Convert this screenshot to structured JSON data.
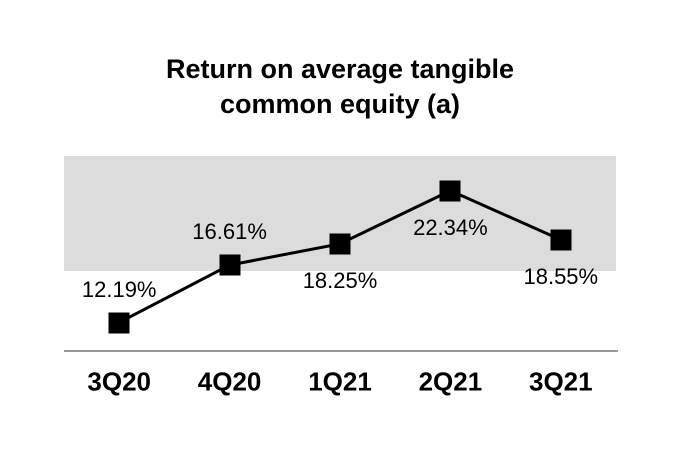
{
  "title": {
    "line1": "Return on average tangible",
    "line2": "common equity (a)"
  },
  "chart_data": {
    "type": "line",
    "title": "Return on average tangible common equity (a)",
    "categories": [
      "3Q20",
      "4Q20",
      "1Q21",
      "2Q21",
      "3Q21"
    ],
    "series": [
      {
        "name": "Return on average tangible common equity",
        "values": [
          12.19,
          16.61,
          18.25,
          22.34,
          18.55
        ]
      }
    ],
    "data_labels": [
      "12.19%",
      "16.61%",
      "18.25%",
      "22.34%",
      "18.55%"
    ],
    "data_label_placement": [
      "above",
      "above",
      "below",
      "below",
      "below"
    ],
    "xlabel": "",
    "ylabel": "",
    "ylim": [
      10,
      25
    ],
    "band_range": [
      16.15,
      25
    ],
    "grid": false,
    "legend": false,
    "marker_shape": "square",
    "colors": {
      "line": "#000000",
      "marker": "#000000",
      "band": "#dcdcdc",
      "axis_line": "#999999",
      "text": "#000000",
      "background": "#ffffff"
    }
  }
}
